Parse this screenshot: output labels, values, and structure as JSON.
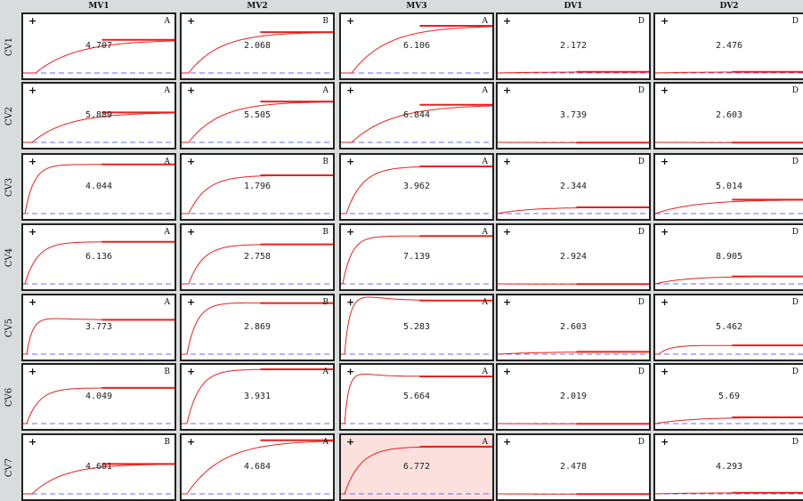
{
  "colors": {
    "background": "#d8dcdc",
    "curve": "#e8201e",
    "setpoint": "#6a6aff",
    "selected_cell": "#fbe0dd"
  },
  "icons": {
    "cell_marker": "plus-icon"
  },
  "columns": [
    "MV1",
    "MV2",
    "MV3",
    "DV1",
    "DV2"
  ],
  "rows": [
    {
      "label": "CV1",
      "cells": [
        {
          "gain": "4.707",
          "corner": "A"
        },
        {
          "gain": "2.068",
          "corner": "B"
        },
        {
          "gain": "6.106",
          "corner": "A"
        },
        {
          "gain": "2.172",
          "corner": "D"
        },
        {
          "gain": "2.476",
          "corner": "D"
        }
      ]
    },
    {
      "label": "CV2",
      "cells": [
        {
          "gain": "5.889",
          "corner": "A"
        },
        {
          "gain": "5.505",
          "corner": "A"
        },
        {
          "gain": "6.844",
          "corner": "A"
        },
        {
          "gain": "3.739",
          "corner": "D"
        },
        {
          "gain": "2.603",
          "corner": "D"
        }
      ]
    },
    {
      "label": "CV3",
      "cells": [
        {
          "gain": "4.044",
          "corner": "A"
        },
        {
          "gain": "1.796",
          "corner": "B"
        },
        {
          "gain": "3.962",
          "corner": "A"
        },
        {
          "gain": "2.344",
          "corner": "D"
        },
        {
          "gain": "5.014",
          "corner": "D"
        }
      ]
    },
    {
      "label": "CV4",
      "cells": [
        {
          "gain": "6.136",
          "corner": "A"
        },
        {
          "gain": "2.758",
          "corner": "B"
        },
        {
          "gain": "7.139",
          "corner": "A"
        },
        {
          "gain": "2.924",
          "corner": "D"
        },
        {
          "gain": "8.905",
          "corner": "D"
        }
      ]
    },
    {
      "label": "CV5",
      "cells": [
        {
          "gain": "3.773",
          "corner": "A"
        },
        {
          "gain": "2.869",
          "corner": "B"
        },
        {
          "gain": "5.283",
          "corner": "A"
        },
        {
          "gain": "2.603",
          "corner": "D"
        },
        {
          "gain": "5.462",
          "corner": "D"
        }
      ]
    },
    {
      "label": "CV6",
      "cells": [
        {
          "gain": "4.049",
          "corner": "B"
        },
        {
          "gain": "3.931",
          "corner": "A"
        },
        {
          "gain": "5.664",
          "corner": "A"
        },
        {
          "gain": "2.019",
          "corner": "D"
        },
        {
          "gain": "5.69",
          "corner": "D"
        }
      ]
    },
    {
      "label": "CV7",
      "cells": [
        {
          "gain": "4.601",
          "corner": "B"
        },
        {
          "gain": "4.684",
          "corner": "A"
        },
        {
          "gain": "6.772",
          "corner": "A",
          "selected": true
        },
        {
          "gain": "2.478",
          "corner": "D"
        },
        {
          "gain": "4.293",
          "corner": "D"
        }
      ]
    }
  ]
}
